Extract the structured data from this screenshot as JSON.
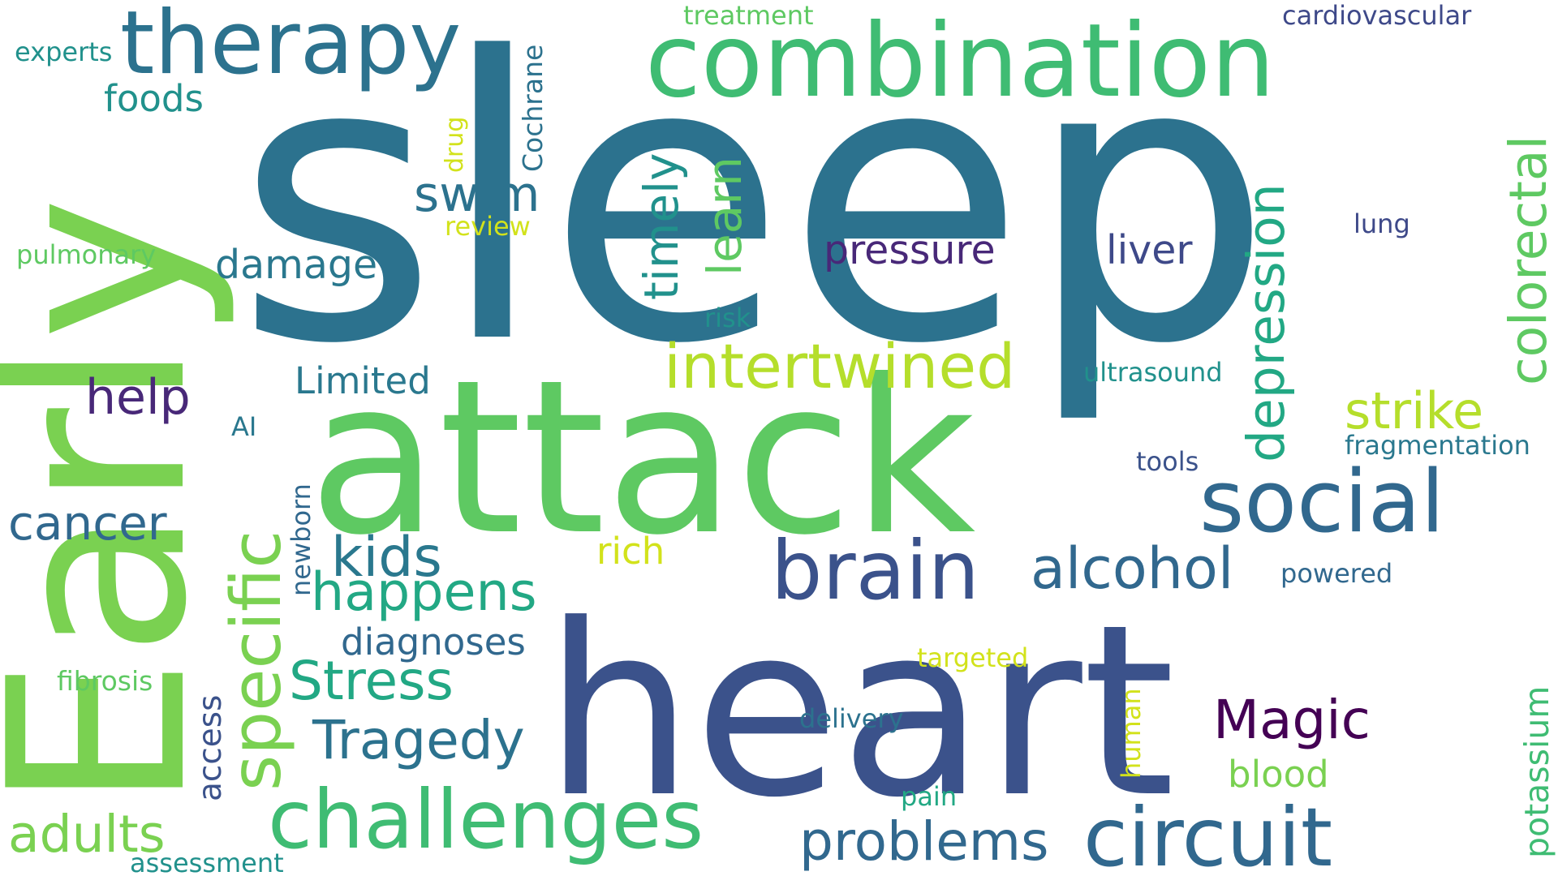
{
  "word_cloud": {
    "words": [
      {
        "text": "sleep",
        "color": "#2c728e"
      },
      {
        "text": "Early",
        "color": "#7ad151"
      },
      {
        "text": "attack",
        "color": "#5ec962"
      },
      {
        "text": "heart",
        "color": "#3b528b"
      },
      {
        "text": "combination",
        "color": "#3fbc73"
      },
      {
        "text": "therapy",
        "color": "#2c728e"
      },
      {
        "text": "challenges",
        "color": "#3fbc73"
      },
      {
        "text": "circuit",
        "color": "#31688e"
      },
      {
        "text": "social",
        "color": "#31688e"
      },
      {
        "text": "brain",
        "color": "#3b528b"
      },
      {
        "text": "specific",
        "color": "#7ad151"
      },
      {
        "text": "intertwined",
        "color": "#b5de2b"
      },
      {
        "text": "depression",
        "color": "#22a884"
      },
      {
        "text": "colorectal",
        "color": "#5ec962"
      },
      {
        "text": "alcohol",
        "color": "#31688e"
      },
      {
        "text": "Tragedy",
        "color": "#2c728e"
      },
      {
        "text": "Stress",
        "color": "#22a884"
      },
      {
        "text": "happens",
        "color": "#22a884"
      },
      {
        "text": "problems",
        "color": "#31688e"
      },
      {
        "text": "Magic",
        "color": "#440154"
      },
      {
        "text": "strike",
        "color": "#b5de2b"
      },
      {
        "text": "kids",
        "color": "#2a788e"
      },
      {
        "text": "timely",
        "color": "#21918c"
      },
      {
        "text": "learn",
        "color": "#5ec962"
      },
      {
        "text": "adults",
        "color": "#7ad151"
      },
      {
        "text": "cancer",
        "color": "#31688e"
      },
      {
        "text": "help",
        "color": "#482878"
      },
      {
        "text": "swim",
        "color": "#2c728e"
      },
      {
        "text": "pressure",
        "color": "#482878"
      },
      {
        "text": "liver",
        "color": "#3e4989"
      },
      {
        "text": "damage",
        "color": "#2a788e"
      },
      {
        "text": "Limited",
        "color": "#2a788e"
      },
      {
        "text": "diagnoses",
        "color": "#31688e"
      },
      {
        "text": "foods",
        "color": "#21918c"
      },
      {
        "text": "blood",
        "color": "#7ad151"
      },
      {
        "text": "rich",
        "color": "#d2e21b"
      },
      {
        "text": "potassium",
        "color": "#3fbc73"
      },
      {
        "text": "access",
        "color": "#3b528b"
      },
      {
        "text": "fibrosis",
        "color": "#5ec962"
      },
      {
        "text": "pulmonary",
        "color": "#5ec962"
      },
      {
        "text": "experts",
        "color": "#21918c"
      },
      {
        "text": "treatment",
        "color": "#5ec962"
      },
      {
        "text": "cardiovascular",
        "color": "#3e4989"
      },
      {
        "text": "Cochrane",
        "color": "#2c728e"
      },
      {
        "text": "drug",
        "color": "#d2e21b"
      },
      {
        "text": "review",
        "color": "#d2e21b"
      },
      {
        "text": "risk",
        "color": "#21918c"
      },
      {
        "text": "ultrasound",
        "color": "#21918c"
      },
      {
        "text": "fragmentation",
        "color": "#2a788e"
      },
      {
        "text": "tools",
        "color": "#3b528b"
      },
      {
        "text": "lung",
        "color": "#3e4989"
      },
      {
        "text": "powered",
        "color": "#31688e"
      },
      {
        "text": "targeted",
        "color": "#d2e21b"
      },
      {
        "text": "delivery",
        "color": "#2c728e"
      },
      {
        "text": "human",
        "color": "#d2e21b"
      },
      {
        "text": "pain",
        "color": "#22a884"
      },
      {
        "text": "assessment",
        "color": "#21918c"
      },
      {
        "text": "newborn",
        "color": "#31688e"
      },
      {
        "text": "AI",
        "color": "#2a788e"
      }
    ]
  }
}
